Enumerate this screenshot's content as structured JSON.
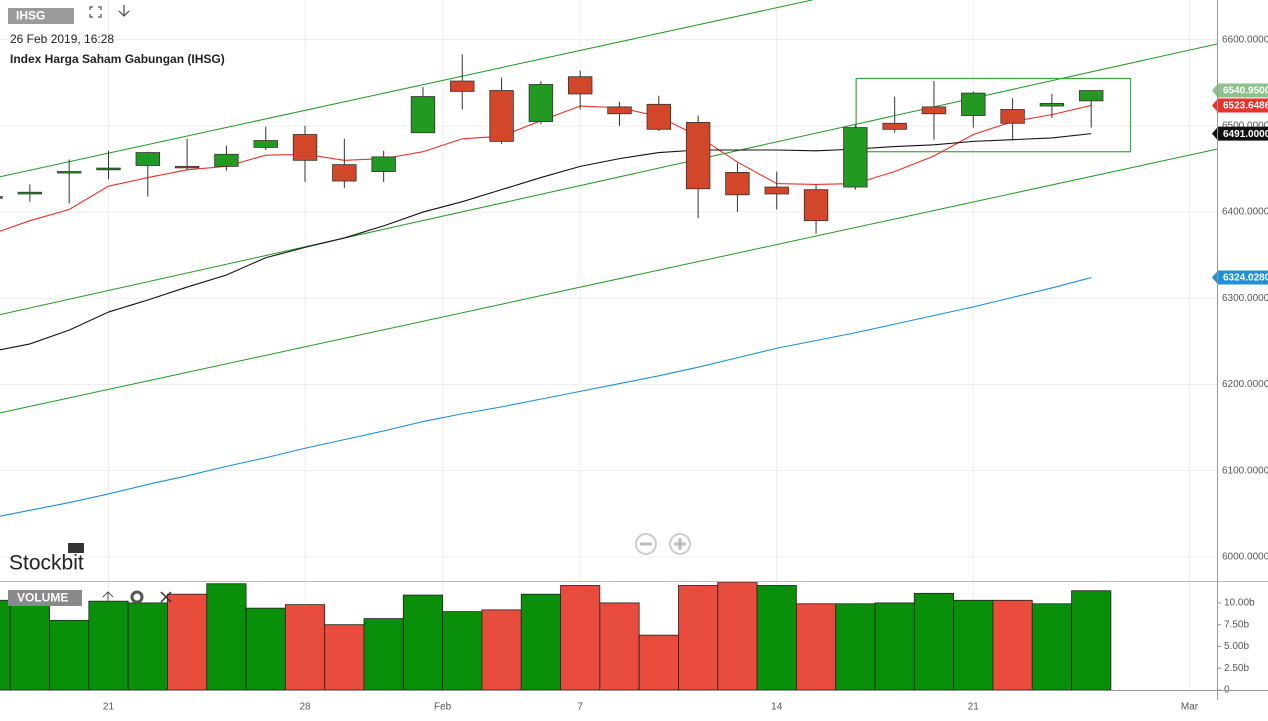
{
  "header": {
    "symbol": "IHSG",
    "datetime": "26 Feb 2019, 16:28",
    "name": "Index Harga Saham Gabungan (IHSG)"
  },
  "logo": "Stockbit",
  "chart_data": [
    {
      "type": "candlestick",
      "xlim": [
        0.24,
        31.2
      ],
      "xticks": [
        {
          "value": 3,
          "label": "21"
        },
        {
          "value": 8,
          "label": "28"
        },
        {
          "value": 11.5,
          "label": "Feb"
        },
        {
          "value": 15,
          "label": "7"
        },
        {
          "value": 20,
          "label": "14"
        },
        {
          "value": 25,
          "label": "21"
        },
        {
          "value": 30.5,
          "label": "Mar"
        }
      ],
      "ylim": [
        5972,
        6646
      ],
      "yticks": [
        {
          "value": 6000,
          "label": "6000.0000"
        },
        {
          "value": 6100,
          "label": "6100.0000"
        },
        {
          "value": 6200,
          "label": "6200.0000"
        },
        {
          "value": 6300,
          "label": "6300.0000"
        },
        {
          "value": 6400,
          "label": "6400.0000"
        },
        {
          "value": 6500,
          "label": "6500.0000"
        },
        {
          "value": 6600,
          "label": "6600.0000"
        }
      ],
      "grid": true,
      "up_color": "#229a22",
      "down_color": "#d2472a",
      "open": [
        6418,
        6421,
        6446,
        6449,
        6454,
        6453,
        6453,
        6475,
        6490,
        6455,
        6447,
        6492,
        6552,
        6541,
        6505,
        6557,
        6522,
        6525,
        6504,
        6446,
        6429,
        6426,
        6429,
        6503,
        6522,
        6512,
        6519,
        6523,
        6529
      ],
      "high": [
        6419,
        6432,
        6461,
        6471,
        6470,
        6485,
        6477,
        6499,
        6500,
        6485,
        6471,
        6545,
        6583,
        6556,
        6552,
        6564,
        6528,
        6535,
        6512,
        6457,
        6447,
        6432,
        6501,
        6534,
        6552,
        6540,
        6532,
        6537,
        6541
      ],
      "low": [
        6415,
        6412,
        6410,
        6438,
        6418,
        6449,
        6448,
        6472,
        6435,
        6428,
        6435,
        6492,
        6519,
        6479,
        6502,
        6519,
        6500,
        6494,
        6393,
        6400,
        6403,
        6375,
        6426,
        6492,
        6484,
        6498,
        6483,
        6509,
        6498
      ],
      "close": [
        6416,
        6423,
        6447,
        6451,
        6469,
        6452,
        6467,
        6483,
        6460,
        6436,
        6464,
        6534,
        6540,
        6482,
        6548,
        6537,
        6514,
        6496,
        6427,
        6420,
        6421,
        6390,
        6498,
        6496,
        6514,
        6538,
        6503,
        6526,
        6540.95
      ],
      "last_label": "6540.9500",
      "last_label_color": "#8cc28c",
      "series": [
        {
          "color": "#e8312a",
          "last_label": "6523.6486",
          "values": [
            6374,
            6390,
            6403,
            6430,
            6440,
            6449,
            6453,
            6466,
            6467,
            6460,
            6462,
            6470,
            6485,
            6488,
            6506,
            6523,
            6521,
            6511,
            6488,
            6458,
            6433,
            6432,
            6433,
            6447,
            6465,
            6490,
            6505,
            6513,
            6523.6486
          ]
        },
        {
          "color": "#111111",
          "last_label": "6491.0000",
          "values": [
            6238,
            6247,
            6263,
            6284,
            6298,
            6313,
            6327,
            6347,
            6359,
            6370,
            6384,
            6400,
            6412,
            6426,
            6440,
            6453,
            6462,
            6469,
            6472,
            6472,
            6472,
            6471,
            6473,
            6476,
            6478,
            6482,
            6484,
            6486,
            6491
          ]
        },
        {
          "color": "#1e90d8",
          "last_label": "6324.0280",
          "values": [
            6045,
            6054,
            6063,
            6073,
            6084,
            6094,
            6105,
            6115,
            6126,
            6136,
            6146,
            6157,
            6166,
            6174,
            6183,
            6192,
            6201,
            6210,
            6220,
            6231,
            6242,
            6251,
            6260,
            6270,
            6280,
            6290,
            6301,
            6312,
            6324.028
          ]
        }
      ],
      "trendlines": [
        {
          "color": "#1f9a1f",
          "x": [
            0.24,
            20.9
          ],
          "y": [
            6441,
            6646
          ]
        },
        {
          "color": "#1f9a1f",
          "x": [
            0.24,
            31.2
          ],
          "y": [
            6281,
            6595
          ]
        },
        {
          "color": "#1f9a1f",
          "x": [
            0.24,
            31.2
          ],
          "y": [
            6167,
            6473
          ]
        }
      ],
      "rectangle": {
        "color": "#3aa83a",
        "x": [
          22.02,
          29.0
        ],
        "y": [
          6470,
          6555
        ]
      }
    },
    {
      "type": "bar",
      "title": "VOLUME",
      "xlim": [
        0.24,
        31.2
      ],
      "ylim": [
        0,
        12.4
      ],
      "yticks": [
        0,
        {
          "value": 2.5,
          "label": "2.50b"
        },
        {
          "value": 5,
          "label": "5.00b"
        },
        {
          "value": 7.5,
          "label": "7.50b"
        },
        {
          "value": 10,
          "label": "10.00b"
        }
      ],
      "values": [
        10.3,
        10.3,
        8.0,
        10.2,
        10.0,
        11.0,
        12.2,
        9.4,
        9.8,
        7.5,
        8.2,
        10.9,
        9.0,
        9.2,
        11.0,
        12.0,
        10.0,
        6.3,
        12.0,
        12.4,
        12.0,
        9.9,
        9.9,
        10.0,
        11.1,
        10.3,
        10.3,
        9.9,
        11.4
      ],
      "colors": [
        "#0a8f0a",
        "#0a8f0a",
        "#0a8f0a",
        "#0a8f0a",
        "#0a8f0a",
        "#e84c3d",
        "#0a8f0a",
        "#0a8f0a",
        "#e84c3d",
        "#e84c3d",
        "#0a8f0a",
        "#0a8f0a",
        "#0a8f0a",
        "#e84c3d",
        "#0a8f0a",
        "#e84c3d",
        "#e84c3d",
        "#e84c3d",
        "#e84c3d",
        "#e84c3d",
        "#0a8f0a",
        "#e84c3d",
        "#0a8f0a",
        "#0a8f0a",
        "#0a8f0a",
        "#0a8f0a",
        "#e84c3d",
        "#0a8f0a",
        "#0a8f0a"
      ]
    }
  ]
}
